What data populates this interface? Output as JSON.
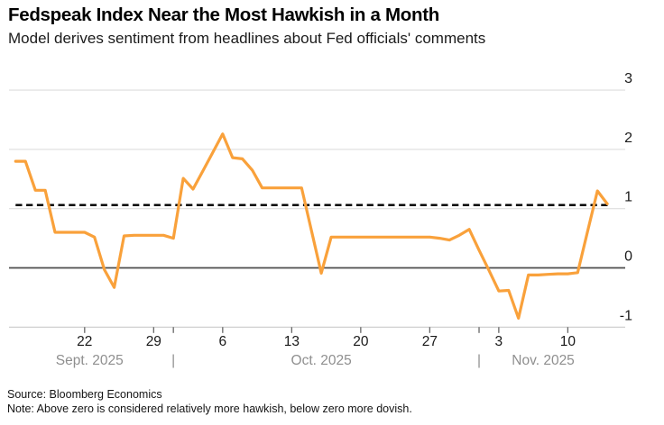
{
  "header": {
    "title": "Fedspeak Index Near the Most Hawkish in a Month",
    "subtitle": "Model derives sentiment from headlines about Fed officials' comments"
  },
  "footer": {
    "source": "Source: Bloomberg Economics",
    "note": "Note: Above zero is considered relatively more hawkish, below zero more dovish."
  },
  "colors": {
    "series_line": "#F9A13B",
    "gridline": "#DEDEDE",
    "axis_line": "#C9C9C9",
    "zero_line": "#4D4D4D",
    "reference_line": "#000000",
    "tick_mark": "#666666",
    "axis_text": "#1A1A1A",
    "month_text": "#8F8F8F",
    "background": "#FFFFFF"
  },
  "chart_data": {
    "type": "line",
    "title": "Fedspeak Index Near the Most Hawkish in a Month",
    "subtitle": "Model derives sentiment from headlines about Fed officials' comments",
    "legend": "none",
    "grid": "horizontal",
    "series": [
      {
        "name": "Fedspeak Index",
        "color": "#F9A13B",
        "dates": [
          "2025-09-15",
          "2025-09-16",
          "2025-09-17",
          "2025-09-18",
          "2025-09-19",
          "2025-09-20",
          "2025-09-21",
          "2025-09-22",
          "2025-09-23",
          "2025-09-24",
          "2025-09-25",
          "2025-09-26",
          "2025-09-27",
          "2025-09-28",
          "2025-09-29",
          "2025-09-30",
          "2025-10-01",
          "2025-10-02",
          "2025-10-03",
          "2025-10-04",
          "2025-10-05",
          "2025-10-06",
          "2025-10-07",
          "2025-10-08",
          "2025-10-09",
          "2025-10-10",
          "2025-10-11",
          "2025-10-12",
          "2025-10-13",
          "2025-10-14",
          "2025-10-15",
          "2025-10-16",
          "2025-10-17",
          "2025-10-18",
          "2025-10-19",
          "2025-10-20",
          "2025-10-21",
          "2025-10-22",
          "2025-10-23",
          "2025-10-24",
          "2025-10-25",
          "2025-10-26",
          "2025-10-27",
          "2025-10-28",
          "2025-10-29",
          "2025-10-30",
          "2025-10-31",
          "2025-11-01",
          "2025-11-02",
          "2025-11-03",
          "2025-11-04",
          "2025-11-05",
          "2025-11-06",
          "2025-11-07",
          "2025-11-08",
          "2025-11-09",
          "2025-11-10",
          "2025-11-11",
          "2025-11-12",
          "2025-11-13",
          "2025-11-14"
        ],
        "values": [
          1.8,
          1.8,
          1.31,
          1.31,
          0.6,
          0.6,
          0.6,
          0.6,
          0.52,
          -0.03,
          -0.33,
          0.54,
          0.55,
          0.55,
          0.55,
          0.55,
          0.5,
          1.51,
          1.33,
          1.64,
          1.95,
          2.26,
          1.86,
          1.84,
          1.65,
          1.35,
          1.35,
          1.35,
          1.35,
          1.35,
          0.63,
          -0.09,
          0.52,
          0.52,
          0.52,
          0.52,
          0.52,
          0.52,
          0.52,
          0.52,
          0.52,
          0.52,
          0.52,
          0.5,
          0.47,
          0.55,
          0.65,
          0.3,
          -0.04,
          -0.39,
          -0.38,
          -0.85,
          -0.12,
          -0.12,
          -0.11,
          -0.1,
          -0.1,
          -0.08,
          0.61,
          1.3,
          1.08
        ]
      }
    ],
    "reference_line": {
      "value": 1.06,
      "style": "dashed",
      "color": "#000000"
    },
    "zero_baseline": 0,
    "y_axis": {
      "side": "right",
      "tick_values": [
        3,
        2,
        1,
        0,
        -1
      ],
      "range": [
        -1,
        3
      ],
      "gridlines": true
    },
    "x_axis": {
      "week_ticks": [
        {
          "index": 7,
          "label": "22"
        },
        {
          "index": 14,
          "label": "29"
        },
        {
          "index": 21,
          "label": "6"
        },
        {
          "index": 28,
          "label": "13"
        },
        {
          "index": 35,
          "label": "20"
        },
        {
          "index": 42,
          "label": "27"
        },
        {
          "index": 49,
          "label": "3"
        },
        {
          "index": 56,
          "label": "10"
        }
      ],
      "month_separator_indices": [
        16,
        47
      ],
      "separator_glyph": "|",
      "months": [
        {
          "label": "Sept. 2025",
          "start_index": 0,
          "end_index": 15
        },
        {
          "label": "Oct. 2025",
          "start_index": 16,
          "end_index": 46
        },
        {
          "label": "Nov. 2025",
          "start_index": 47,
          "end_index": 60
        }
      ]
    }
  }
}
